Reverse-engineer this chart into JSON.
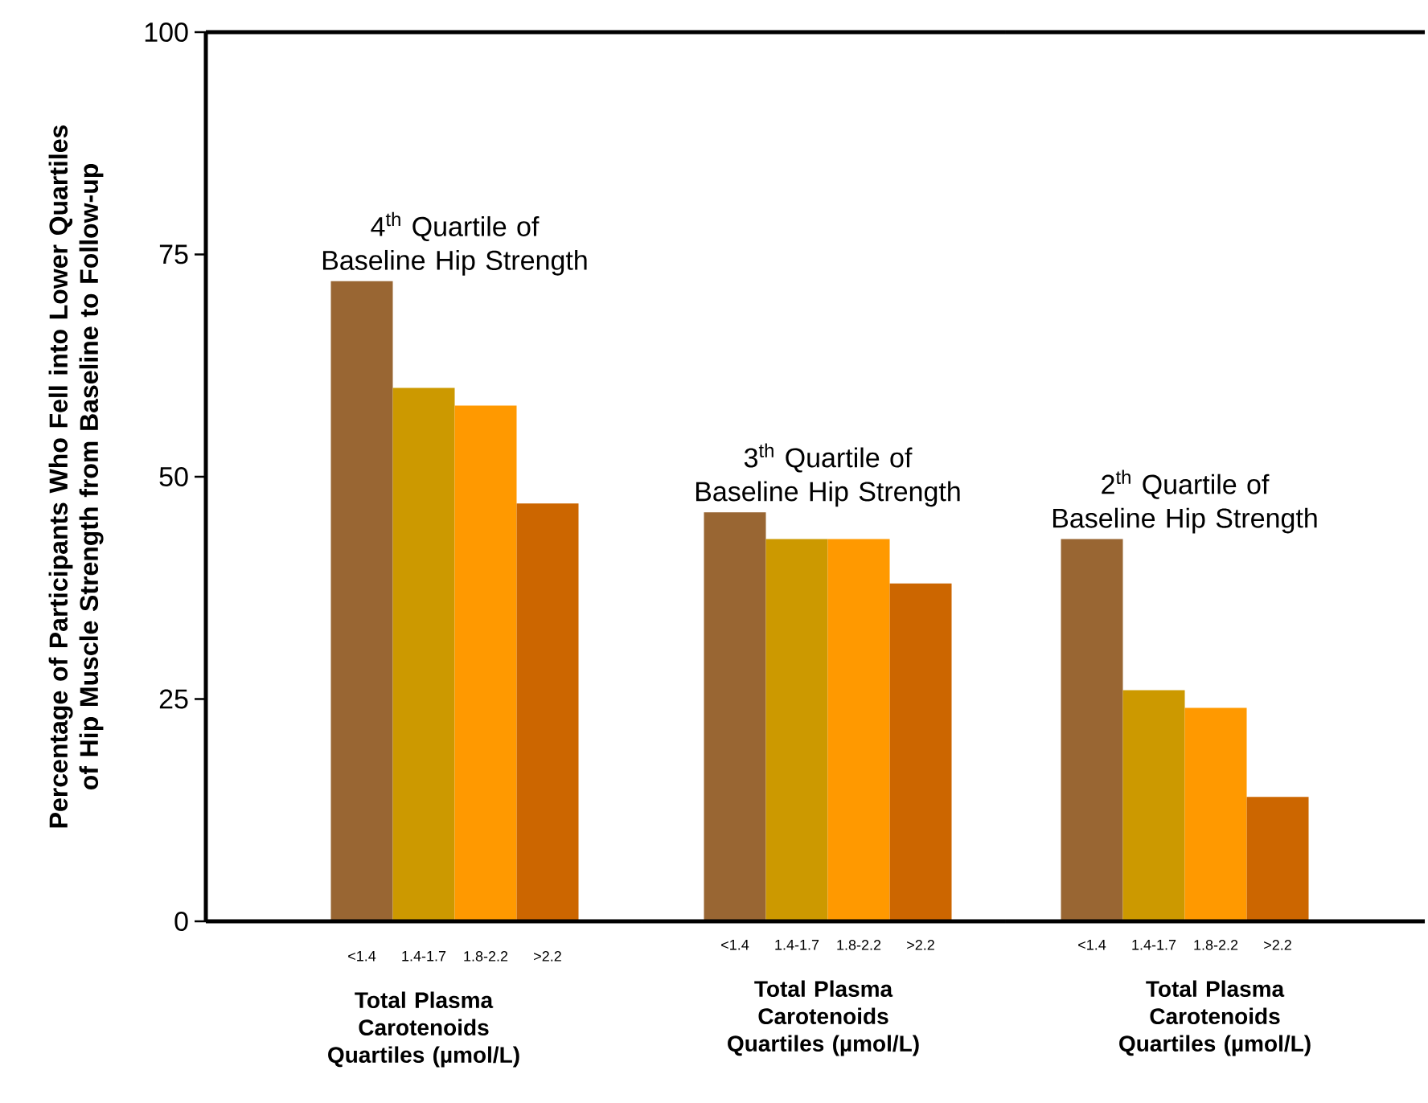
{
  "chart_data": [
    {
      "type": "bar",
      "title": "4$^{th}$ Quartile of Baseline Hip Strength",
      "xlabel": "Total Plasma Carotenoids Quartiles (µmol/L)",
      "ylabel": "Percentage of Participants Who Fell into Lower Quartiles of Hip Muscle Strength from Baseline to Follow-up",
      "categories": [
        "<1.4",
        "1.4-1.7",
        "1.8-2.2",
        ">2.2"
      ],
      "values": [
        72,
        60,
        58,
        47
      ],
      "colors": [
        "#996633",
        "#cc9900",
        "#ff9900",
        "#cc6600"
      ],
      "ylim": [
        0,
        100
      ],
      "yticks": [
        0,
        25,
        50,
        75,
        100
      ]
    },
    {
      "type": "bar",
      "title": "3$^{th}$ Quartile of Baseline Hip Strength",
      "xlabel": "Total Plasma Carotenoids Quartiles (µmol/L)",
      "categories": [
        "<1.4",
        "1.4-1.7",
        "1.8-2.2",
        ">2.2"
      ],
      "values": [
        46,
        43,
        43,
        38
      ],
      "colors": [
        "#996633",
        "#cc9900",
        "#ff9900",
        "#cc6600"
      ],
      "ylim": [
        0,
        100
      ],
      "tick_labels": "x"
    },
    {
      "type": "bar",
      "title": "2$^{th}$ Quartile of Baseline Hip Strength",
      "xlabel": "Total Plasma Carotenoids Quartiles (µmol/L)",
      "categories": [
        "<1.4",
        "1.4-1.7",
        "1.8-2.2",
        ">2.2"
      ],
      "values": [
        43,
        26,
        24,
        14
      ],
      "colors": [
        "#996633",
        "#cc9900",
        "#ff9900",
        "#cc6600"
      ],
      "ylim": [
        0,
        100
      ],
      "tick_labels": "x"
    }
  ]
}
